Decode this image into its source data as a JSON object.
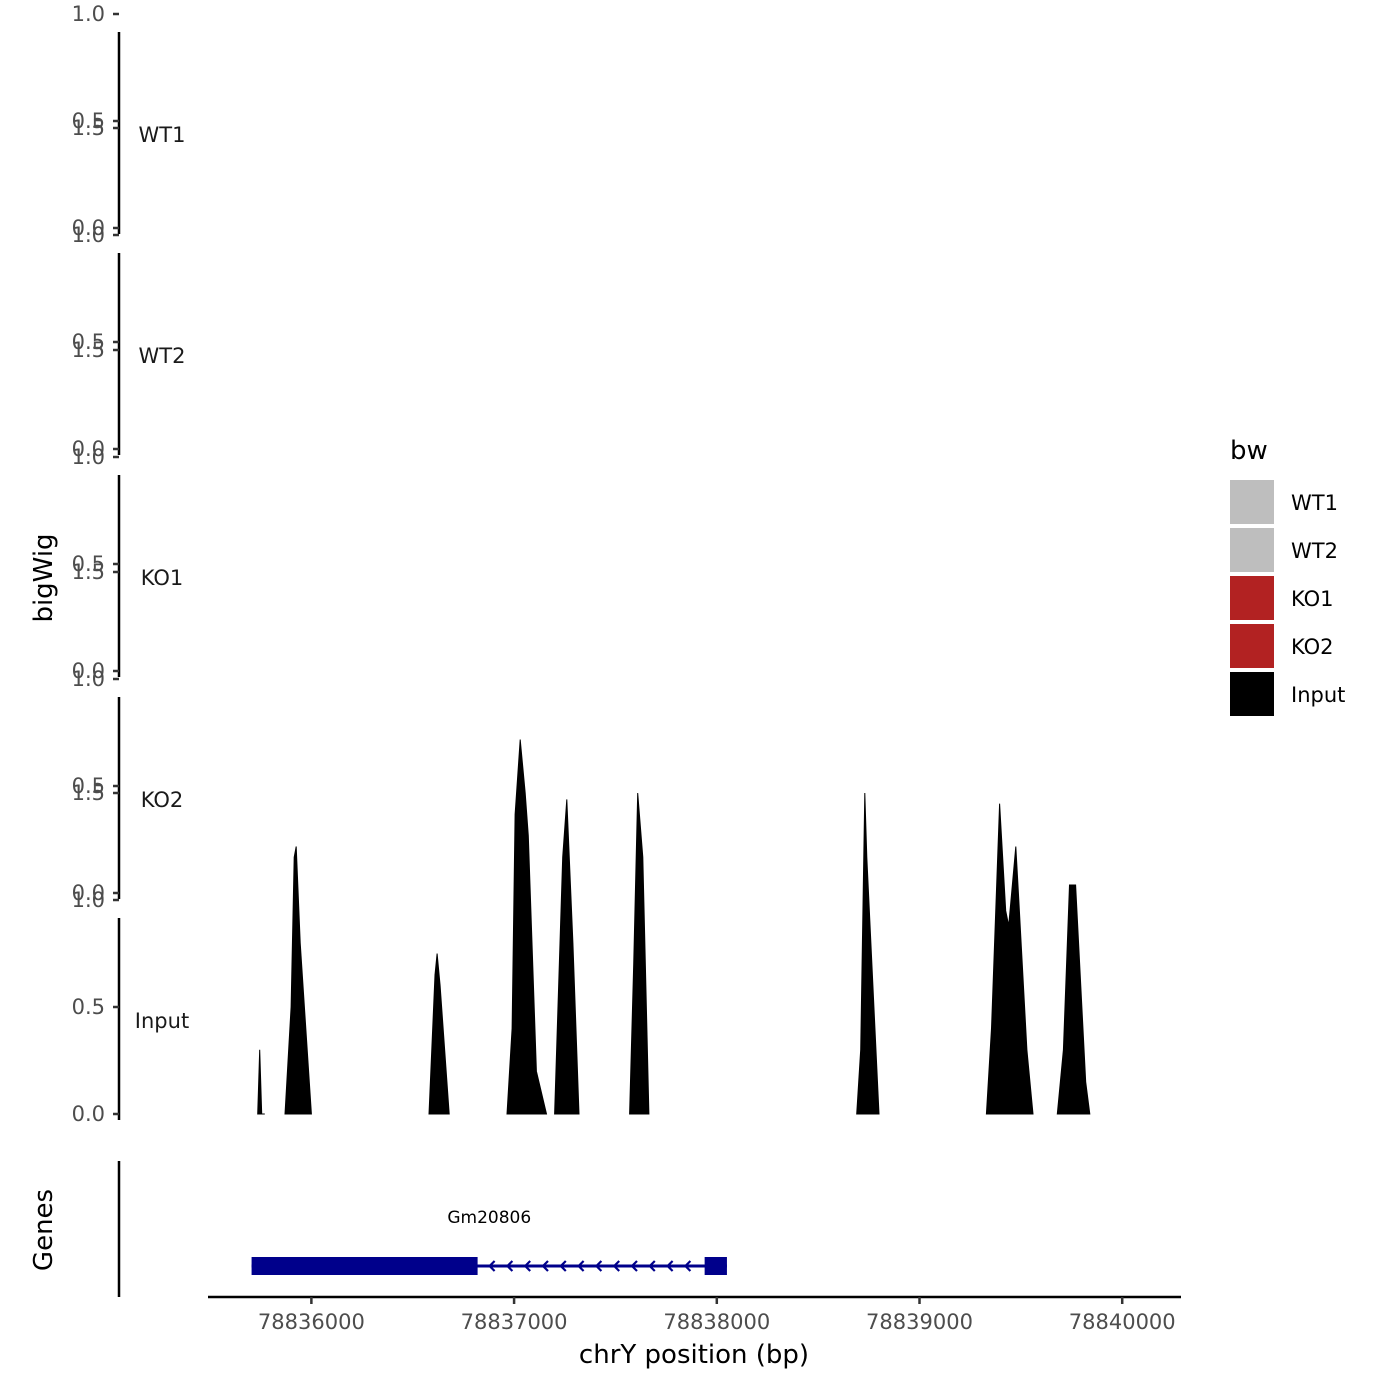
{
  "chart_data": {
    "type": "area",
    "ylabel": "bigWig",
    "xlabel": "chrY position (bp)",
    "genes_label": "Genes",
    "xlim": [
      78835490,
      78840290
    ],
    "ylim": [
      0,
      1.85
    ],
    "x_ticks": [
      {
        "value": 78836000,
        "label": "78836000"
      },
      {
        "value": 78837000,
        "label": "78837000"
      },
      {
        "value": 78838000,
        "label": "78838000"
      },
      {
        "value": 78839000,
        "label": "78839000"
      },
      {
        "value": 78840000,
        "label": "78840000"
      }
    ],
    "y_ticks": [
      {
        "value": 0.0,
        "label": "0.0"
      },
      {
        "value": 0.5,
        "label": "0.5"
      },
      {
        "value": 1.0,
        "label": "1.0"
      },
      {
        "value": 1.5,
        "label": "1.5"
      }
    ],
    "tracks": [
      {
        "name": "WT1",
        "color": "#bebebe",
        "peaks": []
      },
      {
        "name": "WT2",
        "color": "#bebebe",
        "peaks": []
      },
      {
        "name": "KO1",
        "color": "#b22222",
        "peaks": []
      },
      {
        "name": "KO2",
        "color": "#b22222",
        "peaks": []
      },
      {
        "name": "Input",
        "color": "#000000",
        "peaks": [
          [
            [
              78835735,
              0
            ],
            [
              78835745,
              0.3
            ],
            [
              78835755,
              0
            ],
            [
              78835770,
              0
            ]
          ],
          [
            [
              78835870,
              0
            ],
            [
              78835900,
              0.5
            ],
            [
              78835915,
              1.2
            ],
            [
              78835925,
              1.25
            ],
            [
              78835945,
              0.8
            ],
            [
              78836000,
              0
            ]
          ],
          [
            [
              78836580,
              0
            ],
            [
              78836610,
              0.65
            ],
            [
              78836620,
              0.75
            ],
            [
              78836635,
              0.6
            ],
            [
              78836680,
              0
            ]
          ],
          [
            [
              78836965,
              0
            ],
            [
              78836990,
              0.4
            ],
            [
              78837005,
              1.4
            ],
            [
              78837030,
              1.75
            ],
            [
              78837055,
              1.5
            ],
            [
              78837070,
              1.3
            ],
            [
              78837110,
              0.2
            ],
            [
              78837160,
              0
            ]
          ],
          [
            [
              78837200,
              0
            ],
            [
              78837240,
              1.2
            ],
            [
              78837260,
              1.47
            ],
            [
              78837290,
              0.8
            ],
            [
              78837320,
              0
            ]
          ],
          [
            [
              78837570,
              0
            ],
            [
              78837590,
              0.7
            ],
            [
              78837610,
              1.5
            ],
            [
              78837635,
              1.2
            ],
            [
              78837665,
              0
            ]
          ],
          [
            [
              78838690,
              0
            ],
            [
              78838710,
              0.3
            ],
            [
              78838730,
              1.5
            ],
            [
              78838740,
              1.2
            ],
            [
              78838800,
              0
            ]
          ],
          [
            [
              78839330,
              0
            ],
            [
              78839355,
              0.4
            ],
            [
              78839395,
              1.45
            ],
            [
              78839425,
              0.95
            ],
            [
              78839440,
              0.88
            ],
            [
              78839475,
              1.25
            ],
            [
              78839490,
              1.0
            ],
            [
              78839530,
              0.3
            ],
            [
              78839560,
              0
            ]
          ],
          [
            [
              78839680,
              0
            ],
            [
              78839710,
              0.3
            ],
            [
              78839740,
              1.07
            ],
            [
              78839770,
              1.07
            ],
            [
              78839820,
              0.15
            ],
            [
              78839840,
              0
            ]
          ]
        ]
      }
    ],
    "legend": {
      "title": "bw",
      "position": "right",
      "entries": [
        {
          "label": "WT1",
          "color": "#bebebe"
        },
        {
          "label": "WT2",
          "color": "#bebebe"
        },
        {
          "label": "KO1",
          "color": "#b22222"
        },
        {
          "label": "KO2",
          "color": "#b22222"
        },
        {
          "label": "Input",
          "color": "#000000"
        }
      ]
    },
    "gene": {
      "name": "Gm20806",
      "start": 78835705,
      "end": 78838050,
      "strand": "-",
      "color": "#00008b",
      "exons": [
        [
          78835705,
          78836820
        ],
        [
          78837940,
          78838050
        ]
      ]
    }
  }
}
